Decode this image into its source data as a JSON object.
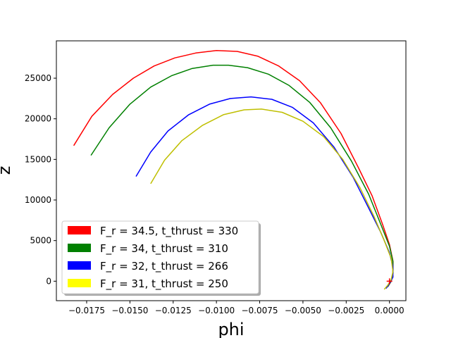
{
  "chart_data": {
    "type": "line",
    "title": "",
    "xlabel": "phi",
    "ylabel": "z",
    "xlim": [
      -0.01925,
      0.00095
    ],
    "ylim": [
      -2400,
      29600
    ],
    "xticks": [
      -0.0175,
      -0.015,
      -0.0125,
      -0.01,
      -0.0075,
      -0.005,
      -0.0025,
      0.0
    ],
    "xtick_labels": [
      "−0.0175",
      "−0.0150",
      "−0.0125",
      "−0.0100",
      "−0.0075",
      "−0.0050",
      "−0.0025",
      "0.0000"
    ],
    "yticks": [
      0,
      5000,
      10000,
      15000,
      20000,
      25000
    ],
    "ytick_labels": [
      "0",
      "5000",
      "10000",
      "15000",
      "20000",
      "25000"
    ],
    "grid": false,
    "legend_position": "lower-left",
    "marker": {
      "x": 0.0,
      "y": 0,
      "symbol": "+",
      "color": "#ff0000"
    },
    "series": [
      {
        "name": "F_r = 34.5, t_thrust = 330",
        "color": "#ff0000",
        "legend_color": "#ff0000",
        "x": [
          -0.01825,
          -0.0172,
          -0.016,
          -0.0148,
          -0.0136,
          -0.0124,
          -0.0112,
          -0.01,
          -0.0088,
          -0.0076,
          -0.0064,
          -0.0052,
          -0.004,
          -0.0028,
          -0.0018,
          -0.001,
          -0.0004,
          0.0,
          0.0002,
          0.0002,
          0.0001,
          -0.0001
        ],
        "y": [
          16700,
          20300,
          23000,
          25000,
          26500,
          27500,
          28100,
          28400,
          28300,
          27700,
          26500,
          24700,
          22000,
          18200,
          14000,
          10500,
          7000,
          4500,
          2500,
          1000,
          0,
          -700
        ]
      },
      {
        "name": "F_r = 34, t_thrust = 310",
        "color": "#008000",
        "legend_color": "#008000",
        "x": [
          -0.01725,
          -0.0162,
          -0.015,
          -0.0138,
          -0.0126,
          -0.0114,
          -0.0102,
          -0.0093,
          -0.0082,
          -0.007,
          -0.0058,
          -0.0046,
          -0.0034,
          -0.0022,
          -0.0012,
          -0.0005,
          0.0,
          0.0002,
          0.0002,
          0.0001,
          -0.0001
        ],
        "y": [
          15500,
          18900,
          21800,
          23900,
          25300,
          26200,
          26600,
          26600,
          26300,
          25500,
          24100,
          22000,
          18900,
          14800,
          10700,
          7000,
          4300,
          2400,
          1000,
          0,
          -700
        ]
      },
      {
        "name": "F_r = 32, t_thrust = 266",
        "color": "#0000ff",
        "legend_color": "#0000ff",
        "x": [
          -0.01465,
          -0.0138,
          -0.0128,
          -0.0116,
          -0.0104,
          -0.0092,
          -0.008,
          -0.0068,
          -0.0056,
          -0.0044,
          -0.0032,
          -0.0021,
          -0.0012,
          -0.0005,
          0.0,
          0.0002,
          0.0002,
          0.0,
          -0.0002
        ],
        "y": [
          12900,
          15900,
          18500,
          20500,
          21800,
          22500,
          22700,
          22400,
          21400,
          19500,
          16500,
          12800,
          9000,
          6000,
          3500,
          1800,
          500,
          -300,
          -900
        ]
      },
      {
        "name": "F_r = 31, t_thrust = 250",
        "color": "#bfbf00",
        "legend_color": "#ffff00",
        "x": [
          -0.0138,
          -0.013,
          -0.012,
          -0.0108,
          -0.0096,
          -0.0084,
          -0.0074,
          -0.0062,
          -0.005,
          -0.0038,
          -0.0027,
          -0.0017,
          -0.0009,
          -0.0003,
          0.0001,
          0.0002,
          0.0001,
          -0.0001,
          -0.0003
        ],
        "y": [
          12000,
          14900,
          17300,
          19200,
          20500,
          21100,
          21200,
          20800,
          19700,
          17800,
          15000,
          11500,
          8000,
          5000,
          2800,
          1200,
          200,
          -500,
          -1000
        ]
      }
    ]
  }
}
